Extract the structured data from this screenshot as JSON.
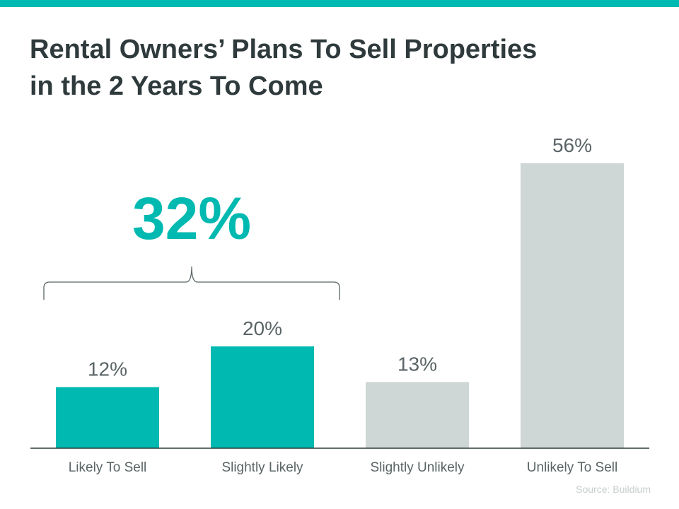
{
  "colors": {
    "accent": "#00b9b0",
    "neutral": "#cfd6d6",
    "text": "#2f3a3c",
    "label": "#5a6466",
    "source": "#c7cdcd"
  },
  "title_lines": [
    "Rental Owners’ Plans To Sell Properties",
    "in the 2 Years To Come"
  ],
  "callout": {
    "value": "32%",
    "spans_categories": [
      0,
      1
    ]
  },
  "source": "Source: Buildium",
  "chart_data": {
    "type": "bar",
    "title": "Rental Owners’ Plans To Sell Properties in the 2 Years To Come",
    "categories": [
      "Likely To Sell",
      "Slightly Likely",
      "Slightly Unlikely",
      "Unlikely To Sell"
    ],
    "values": [
      12,
      20,
      13,
      56
    ],
    "value_labels": [
      "12%",
      "20%",
      "13%",
      "56%"
    ],
    "bar_colors": [
      "#00b9b0",
      "#00b9b0",
      "#cfd6d6",
      "#cfd6d6"
    ],
    "unit": "%",
    "ylim": [
      0,
      60
    ],
    "grid": false,
    "xlabel": "",
    "ylabel": ""
  }
}
